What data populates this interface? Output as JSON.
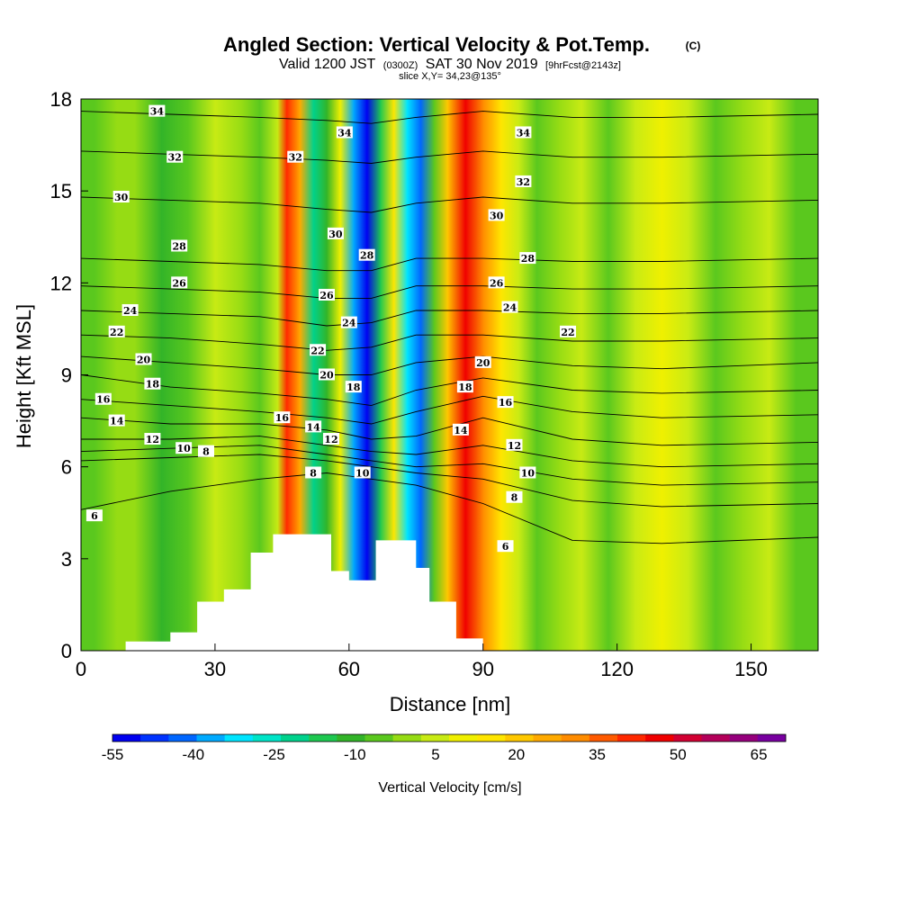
{
  "chart_data": {
    "type": "heatmap",
    "title": "Angled Section: Vertical Velocity & Pot.Temp.",
    "title_unit": "(C)",
    "subtitle": {
      "valid": "Valid 1200 JST",
      "utc": "(0300Z)",
      "date": "SAT 30 Nov 2019",
      "forecast": "[9hrFcst@2143z]"
    },
    "slice": "slice X,Y= 34,23@135°",
    "xlabel": "Distance [nm]",
    "ylabel": "Height [Kft MSL]",
    "xlim": [
      0,
      165
    ],
    "ylim": [
      0,
      18
    ],
    "xticks": [
      0,
      30,
      60,
      90,
      120,
      150
    ],
    "yticks": [
      0,
      3,
      6,
      9,
      12,
      15,
      18
    ],
    "colorbar": {
      "label": "Vertical Velocity [cm/s]",
      "range": [
        -55,
        70
      ],
      "tick_labels": [
        -55,
        -40,
        -25,
        -10,
        5,
        20,
        35,
        50,
        65
      ],
      "colors": [
        "#0000f0",
        "#0033ff",
        "#0066ff",
        "#00aaff",
        "#00e5ff",
        "#00e5c8",
        "#00d28c",
        "#1ec850",
        "#32b428",
        "#5ac81e",
        "#96dc14",
        "#c8eb14",
        "#f0f000",
        "#ffe600",
        "#ffc800",
        "#ffaa00",
        "#ff8c00",
        "#ff5a00",
        "#ff2800",
        "#f00000",
        "#d20032",
        "#b4005a",
        "#96007d",
        "#7800a0"
      ]
    },
    "velocity_columns": [
      {
        "distance": 0,
        "velocity": -5
      },
      {
        "distance": 3,
        "velocity": -3
      },
      {
        "distance": 8,
        "velocity": 2
      },
      {
        "distance": 12,
        "velocity": 0
      },
      {
        "distance": 18,
        "velocity": -12
      },
      {
        "distance": 24,
        "velocity": -3
      },
      {
        "distance": 30,
        "velocity": 3
      },
      {
        "distance": 36,
        "velocity": 0
      },
      {
        "distance": 40,
        "velocity": -8
      },
      {
        "distance": 44,
        "velocity": 5
      },
      {
        "distance": 46,
        "velocity": 40
      },
      {
        "distance": 49,
        "velocity": 25
      },
      {
        "distance": 52,
        "velocity": -20
      },
      {
        "distance": 55,
        "velocity": -10
      },
      {
        "distance": 58,
        "velocity": 10
      },
      {
        "distance": 61,
        "velocity": -35
      },
      {
        "distance": 64,
        "velocity": -50
      },
      {
        "distance": 67,
        "velocity": -15
      },
      {
        "distance": 70,
        "velocity": 15
      },
      {
        "distance": 73,
        "velocity": -30
      },
      {
        "distance": 76,
        "velocity": -40
      },
      {
        "distance": 79,
        "velocity": -5
      },
      {
        "distance": 82,
        "velocity": 20
      },
      {
        "distance": 86,
        "velocity": 45
      },
      {
        "distance": 90,
        "velocity": 30
      },
      {
        "distance": 94,
        "velocity": 15
      },
      {
        "distance": 98,
        "velocity": 5
      },
      {
        "distance": 102,
        "velocity": -5
      },
      {
        "distance": 107,
        "velocity": 0
      },
      {
        "distance": 112,
        "velocity": 5
      },
      {
        "distance": 118,
        "velocity": -3
      },
      {
        "distance": 124,
        "velocity": 3
      },
      {
        "distance": 130,
        "velocity": 12
      },
      {
        "distance": 136,
        "velocity": 5
      },
      {
        "distance": 142,
        "velocity": -8
      },
      {
        "distance": 148,
        "velocity": 0
      },
      {
        "distance": 154,
        "velocity": 3
      },
      {
        "distance": 160,
        "velocity": -5
      },
      {
        "distance": 165,
        "velocity": -3
      }
    ],
    "terrain": [
      {
        "distance": 0,
        "height": 0
      },
      {
        "distance": 10,
        "height": 0.3
      },
      {
        "distance": 20,
        "height": 0.6
      },
      {
        "distance": 26,
        "height": 1.6
      },
      {
        "distance": 32,
        "height": 2.0
      },
      {
        "distance": 38,
        "height": 3.2
      },
      {
        "distance": 43,
        "height": 3.8
      },
      {
        "distance": 52,
        "height": 3.8
      },
      {
        "distance": 56,
        "height": 2.6
      },
      {
        "distance": 60,
        "height": 2.3
      },
      {
        "distance": 66,
        "height": 3.6
      },
      {
        "distance": 72,
        "height": 3.6
      },
      {
        "distance": 75,
        "height": 2.7
      },
      {
        "distance": 78,
        "height": 1.6
      },
      {
        "distance": 84,
        "height": 0.4
      },
      {
        "distance": 90,
        "height": 0
      },
      {
        "distance": 165,
        "height": 0
      }
    ],
    "isentropes": {
      "levels": [
        6,
        8,
        10,
        12,
        14,
        16,
        18,
        20,
        22,
        24,
        26,
        28,
        30,
        32,
        34
      ],
      "heights_at_x": {
        "x": [
          0,
          20,
          40,
          55,
          65,
          75,
          90,
          110,
          130,
          165
        ],
        "rows": [
          [
            4.6,
            5.2,
            5.6,
            5.8,
            5.6,
            5.4,
            4.8,
            3.6,
            3.5,
            3.7
          ],
          [
            6.2,
            6.3,
            6.4,
            6.2,
            6.0,
            5.8,
            5.6,
            4.9,
            4.7,
            4.8
          ],
          [
            6.5,
            6.6,
            6.7,
            6.4,
            6.2,
            6.0,
            6.1,
            5.6,
            5.4,
            5.5
          ],
          [
            6.9,
            6.9,
            7.0,
            6.7,
            6.5,
            6.4,
            6.7,
            6.2,
            6.0,
            6.1
          ],
          [
            7.6,
            7.4,
            7.4,
            7.2,
            6.9,
            7.0,
            7.6,
            6.9,
            6.7,
            6.8
          ],
          [
            8.2,
            8.0,
            7.8,
            7.6,
            7.4,
            7.8,
            8.3,
            7.8,
            7.6,
            7.7
          ],
          [
            9.0,
            8.6,
            8.4,
            8.2,
            8.0,
            8.5,
            8.9,
            8.5,
            8.4,
            8.5
          ],
          [
            9.6,
            9.4,
            9.2,
            9.0,
            9.0,
            9.4,
            9.6,
            9.3,
            9.2,
            9.4
          ],
          [
            10.3,
            10.2,
            10.0,
            9.8,
            9.9,
            10.3,
            10.3,
            10.1,
            10.1,
            10.2
          ],
          [
            11.1,
            11.0,
            10.9,
            10.6,
            10.7,
            11.1,
            11.1,
            11.0,
            11.0,
            11.1
          ],
          [
            11.9,
            11.8,
            11.7,
            11.5,
            11.5,
            11.9,
            11.9,
            11.8,
            11.8,
            11.9
          ],
          [
            12.8,
            12.7,
            12.6,
            12.4,
            12.4,
            12.8,
            12.8,
            12.7,
            12.7,
            12.8
          ],
          [
            14.8,
            14.7,
            14.6,
            14.4,
            14.3,
            14.6,
            14.8,
            14.6,
            14.6,
            14.7
          ],
          [
            16.3,
            16.2,
            16.1,
            16.0,
            15.9,
            16.1,
            16.3,
            16.1,
            16.1,
            16.2
          ],
          [
            17.6,
            17.5,
            17.4,
            17.3,
            17.2,
            17.4,
            17.6,
            17.4,
            17.4,
            17.5
          ]
        ]
      }
    },
    "contour_labels": [
      {
        "text": "34",
        "x": 17,
        "y": 17.6
      },
      {
        "text": "32",
        "x": 21,
        "y": 16.1
      },
      {
        "text": "30",
        "x": 9,
        "y": 14.8
      },
      {
        "text": "28",
        "x": 22,
        "y": 13.2
      },
      {
        "text": "26",
        "x": 22,
        "y": 12.0
      },
      {
        "text": "24",
        "x": 11,
        "y": 11.1
      },
      {
        "text": "22",
        "x": 8,
        "y": 10.4
      },
      {
        "text": "20",
        "x": 14,
        "y": 9.5
      },
      {
        "text": "18",
        "x": 16,
        "y": 8.7
      },
      {
        "text": "16",
        "x": 5,
        "y": 8.2
      },
      {
        "text": "14",
        "x": 8,
        "y": 7.5
      },
      {
        "text": "12",
        "x": 16,
        "y": 6.9
      },
      {
        "text": "10",
        "x": 23,
        "y": 6.6
      },
      {
        "text": "8",
        "x": 28,
        "y": 6.5
      },
      {
        "text": "6",
        "x": 3,
        "y": 4.4
      },
      {
        "text": "32",
        "x": 48,
        "y": 16.1
      },
      {
        "text": "34",
        "x": 59,
        "y": 16.9
      },
      {
        "text": "30",
        "x": 57,
        "y": 13.6
      },
      {
        "text": "28",
        "x": 64,
        "y": 12.9
      },
      {
        "text": "26",
        "x": 55,
        "y": 11.6
      },
      {
        "text": "24",
        "x": 60,
        "y": 10.7
      },
      {
        "text": "22",
        "x": 53,
        "y": 9.8
      },
      {
        "text": "20",
        "x": 55,
        "y": 9.0
      },
      {
        "text": "18",
        "x": 61,
        "y": 8.6
      },
      {
        "text": "16",
        "x": 45,
        "y": 7.6
      },
      {
        "text": "14",
        "x": 52,
        "y": 7.3
      },
      {
        "text": "12",
        "x": 56,
        "y": 6.9
      },
      {
        "text": "8",
        "x": 52,
        "y": 5.8
      },
      {
        "text": "10",
        "x": 63,
        "y": 5.8
      },
      {
        "text": "34",
        "x": 99,
        "y": 16.9
      },
      {
        "text": "32",
        "x": 99,
        "y": 15.3
      },
      {
        "text": "30",
        "x": 93,
        "y": 14.2
      },
      {
        "text": "28",
        "x": 100,
        "y": 12.8
      },
      {
        "text": "26",
        "x": 93,
        "y": 12.0
      },
      {
        "text": "24",
        "x": 96,
        "y": 11.2
      },
      {
        "text": "22",
        "x": 109,
        "y": 10.4
      },
      {
        "text": "20",
        "x": 90,
        "y": 9.4
      },
      {
        "text": "18",
        "x": 86,
        "y": 8.6
      },
      {
        "text": "16",
        "x": 95,
        "y": 8.1
      },
      {
        "text": "14",
        "x": 85,
        "y": 7.2
      },
      {
        "text": "12",
        "x": 97,
        "y": 6.7
      },
      {
        "text": "10",
        "x": 100,
        "y": 5.8
      },
      {
        "text": "8",
        "x": 97,
        "y": 5.0
      },
      {
        "text": "6",
        "x": 95,
        "y": 3.4
      }
    ]
  }
}
